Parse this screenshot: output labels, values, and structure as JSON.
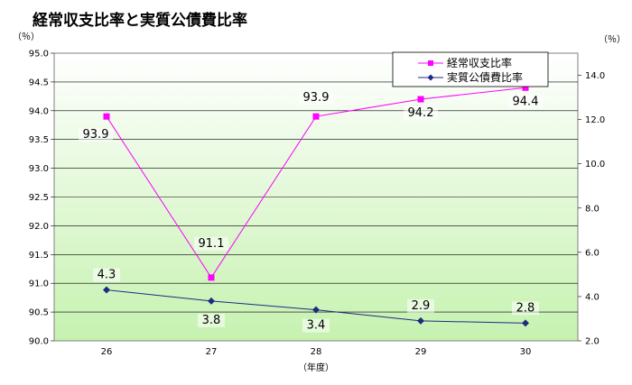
{
  "chart_data": {
    "type": "line",
    "title": "経常収支比率と実質公債費比率",
    "categories": [
      "26",
      "27",
      "28",
      "29",
      "30"
    ],
    "xlabel": "（年度）",
    "ylabel_left": "（％）",
    "ylabel_right": "（％）",
    "y_left": {
      "min": 90.0,
      "max": 95.0,
      "step": 0.5,
      "ticks": [
        "90.0",
        "90.5",
        "91.0",
        "91.5",
        "92.0",
        "92.5",
        "93.0",
        "93.5",
        "94.0",
        "94.5",
        "95.0"
      ]
    },
    "y_right": {
      "min": 2.0,
      "max": 15.0,
      "step": 2.0,
      "ticks": [
        "2.0",
        "4.0",
        "6.0",
        "8.0",
        "10.0",
        "12.0",
        "14.0"
      ]
    },
    "grid": true,
    "legend_position": "top-right",
    "series": [
      {
        "name": "経常収支比率",
        "axis": "left",
        "color": "#ff00ff",
        "marker": "square",
        "values": [
          93.9,
          91.1,
          93.9,
          94.2,
          94.4
        ],
        "labels": [
          "93.9",
          "91.1",
          "93.9",
          "94.2",
          "94.4"
        ]
      },
      {
        "name": "実質公債費比率",
        "axis": "right",
        "color": "#1f2a80",
        "marker": "diamond",
        "values": [
          4.3,
          3.8,
          3.4,
          2.9,
          2.8
        ],
        "labels": [
          "4.3",
          "3.8",
          "3.4",
          "2.9",
          "2.8"
        ]
      }
    ]
  }
}
